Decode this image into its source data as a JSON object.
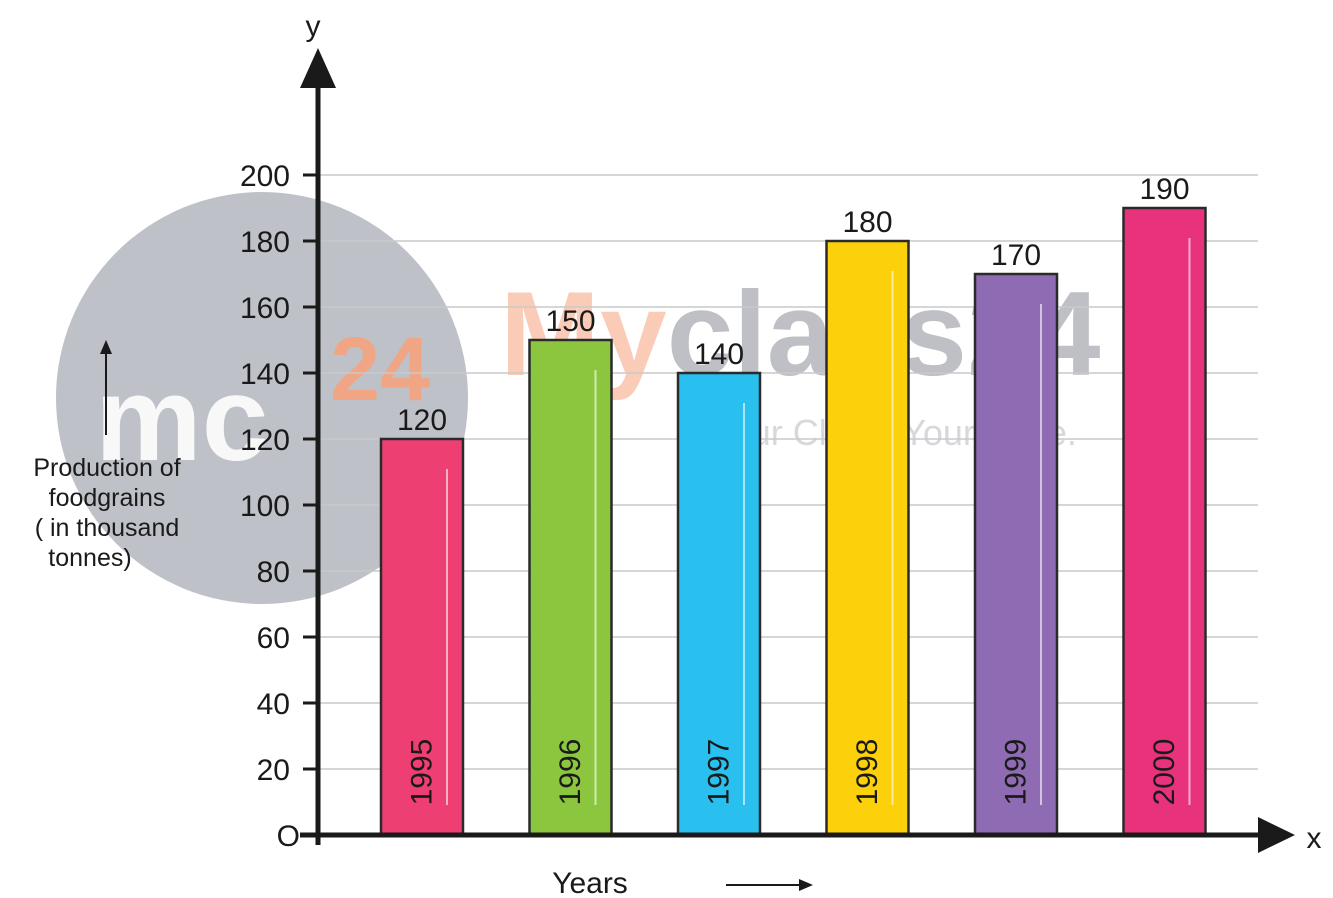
{
  "chart_data": {
    "type": "bar",
    "categories": [
      "1995",
      "1996",
      "1997",
      "1998",
      "1999",
      "2000"
    ],
    "values": [
      120,
      150,
      140,
      180,
      170,
      190
    ],
    "colors": [
      "#ee3f72",
      "#8cc63f",
      "#29bfef",
      "#fcd10c",
      "#8e6bb3",
      "#e8327c"
    ],
    "title": "",
    "xlabel": "Years",
    "ylabel_lines": [
      "Production of",
      "foodgrains",
      "( in thousand",
      "tonnes)"
    ],
    "x_axis_letter": "x",
    "y_axis_letter": "y",
    "origin_label": "O",
    "ylim": [
      0,
      200
    ],
    "yticks": [
      20,
      40,
      60,
      80,
      100,
      120,
      140,
      160,
      180,
      200
    ],
    "grid": true,
    "data_labels": [
      "120",
      "150",
      "140",
      "180",
      "170",
      "190"
    ]
  },
  "watermark": {
    "logo_text": "mc",
    "logo_number": "24",
    "brand_my": "My",
    "brand_rest": "class24",
    "tagline": "Your Class. Your Pace.",
    "circle_color": "#b3b6bd",
    "accent_color": "#f6a27e"
  }
}
